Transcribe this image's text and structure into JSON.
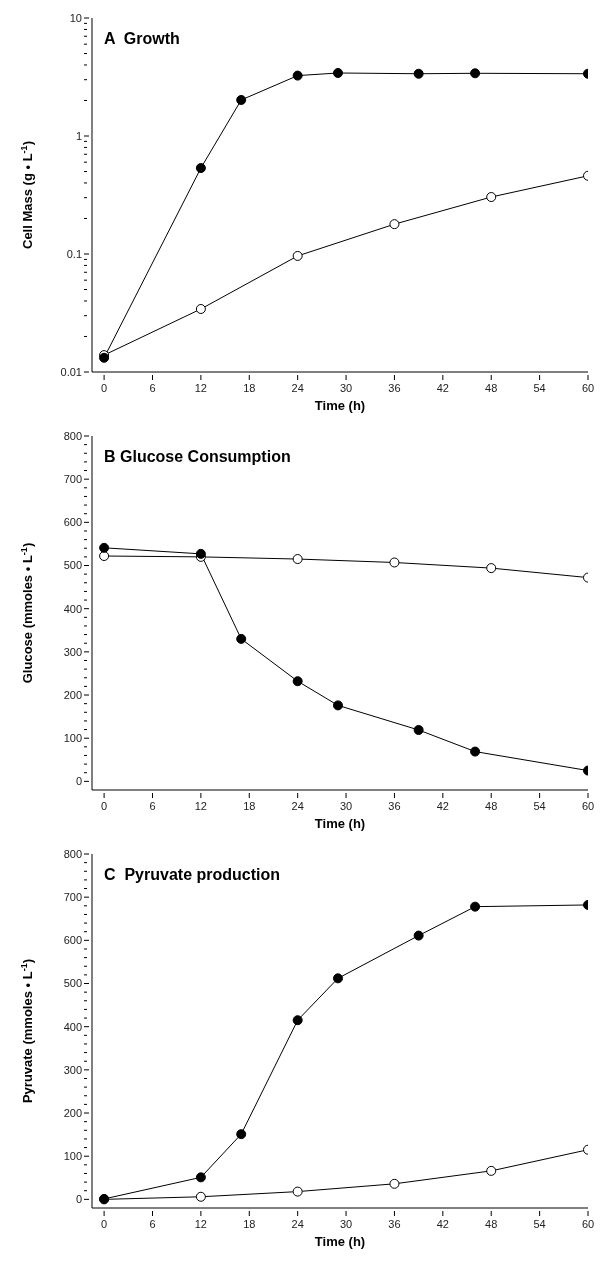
{
  "chart_data": [
    {
      "type": "line",
      "title": "A  Growth",
      "xlabel": "Time (h)",
      "ylabel": "Cell Mass (g • L$^{-1}$)",
      "log": "y",
      "marker": "circle",
      "line_style": "solid",
      "grid": false,
      "legend": false,
      "xlim": [
        -1.5,
        60
      ],
      "xticks": [
        0,
        6,
        12,
        18,
        24,
        30,
        36,
        42,
        48,
        54,
        60
      ],
      "ylim": [
        0.01,
        10
      ],
      "yticks": [
        0.01,
        {
          "value": 0.02,
          "label": null
        },
        {
          "value": 0.03,
          "label": null
        },
        {
          "value": 0.04,
          "label": null
        },
        {
          "value": 0.05,
          "label": null
        },
        {
          "value": 0.06,
          "label": null
        },
        {
          "value": 0.07,
          "label": null
        },
        {
          "value": 0.08,
          "label": null
        },
        {
          "value": 0.09,
          "label": null
        },
        0.1,
        {
          "value": 0.2,
          "label": null
        },
        {
          "value": 0.3,
          "label": null
        },
        {
          "value": 0.4,
          "label": null
        },
        {
          "value": 0.5,
          "label": null
        },
        {
          "value": 0.6,
          "label": null
        },
        {
          "value": 0.7,
          "label": null
        },
        {
          "value": 0.8,
          "label": null
        },
        {
          "value": 0.9,
          "label": null
        },
        1,
        {
          "value": 2,
          "label": null
        },
        {
          "value": 3,
          "label": null
        },
        {
          "value": 4,
          "label": null
        },
        {
          "value": 5,
          "label": null
        },
        {
          "value": 6,
          "label": null
        },
        {
          "value": 7,
          "label": null
        },
        {
          "value": 8,
          "label": null
        },
        {
          "value": 9,
          "label": null
        },
        10
      ],
      "series": [
        {
          "color": "#000000",
          "x": [
            0,
            12,
            17,
            24,
            29,
            39,
            46,
            60
          ],
          "values": [
            0.0132,
            0.535,
            2.02,
            3.25,
            3.42,
            3.37,
            3.4,
            3.37
          ]
        },
        {
          "color": "#000000",
          "x": [
            0,
            12,
            24,
            36,
            48,
            60
          ],
          "values": [
            0.0139,
            0.0342,
            0.0963,
            0.179,
            0.304,
            0.46
          ]
        }
      ]
    },
    {
      "type": "line",
      "title": "B Glucose Consumption",
      "xlabel": "Time (h)",
      "ylabel": "Glucose (mmoles • L$^{-1}$)",
      "marker": "circle",
      "line_style": "solid",
      "grid": false,
      "legend": false,
      "xlim": [
        -1.5,
        60
      ],
      "xticks": [
        0,
        6,
        12,
        18,
        24,
        30,
        36,
        42,
        48,
        54,
        60
      ],
      "ylim": [
        -20,
        800
      ],
      "yticks": [
        0,
        {
          "value": 20,
          "label": null
        },
        {
          "value": 40,
          "label": null
        },
        {
          "value": 60,
          "label": null
        },
        {
          "value": 80,
          "label": null
        },
        100,
        {
          "value": 120,
          "label": null
        },
        {
          "value": 140,
          "label": null
        },
        {
          "value": 160,
          "label": null
        },
        {
          "value": 180,
          "label": null
        },
        200,
        {
          "value": 220,
          "label": null
        },
        {
          "value": 240,
          "label": null
        },
        {
          "value": 260,
          "label": null
        },
        {
          "value": 280,
          "label": null
        },
        300,
        {
          "value": 320,
          "label": null
        },
        {
          "value": 340,
          "label": null
        },
        {
          "value": 360,
          "label": null
        },
        {
          "value": 380,
          "label": null
        },
        400,
        {
          "value": 420,
          "label": null
        },
        {
          "value": 440,
          "label": null
        },
        {
          "value": 460,
          "label": null
        },
        {
          "value": 480,
          "label": null
        },
        500,
        {
          "value": 520,
          "label": null
        },
        {
          "value": 540,
          "label": null
        },
        {
          "value": 560,
          "label": null
        },
        {
          "value": 580,
          "label": null
        },
        600,
        {
          "value": 620,
          "label": null
        },
        {
          "value": 640,
          "label": null
        },
        {
          "value": 660,
          "label": null
        },
        {
          "value": 680,
          "label": null
        },
        700,
        {
          "value": 720,
          "label": null
        },
        {
          "value": 740,
          "label": null
        },
        {
          "value": 760,
          "label": null
        },
        {
          "value": 780,
          "label": null
        },
        800
      ],
      "series": [
        {
          "color": "#000000",
          "x": [
            0,
            12,
            17,
            24,
            29,
            39,
            46,
            60
          ],
          "values": [
            541,
            527,
            330,
            232,
            176,
            119,
            69,
            25
          ]
        },
        {
          "color": "#000000",
          "x": [
            0,
            12,
            24,
            36,
            48,
            60
          ],
          "values": [
            522,
            520,
            515,
            507,
            494,
            472
          ]
        }
      ]
    },
    {
      "type": "line",
      "title": "C  Pyruvate production",
      "xlabel": "Time (h)",
      "ylabel": "Pyruvate (mmoles • L$^{-1}$)",
      "marker": "circle",
      "line_style": "solid",
      "grid": false,
      "legend": false,
      "xlim": [
        -1.5,
        60
      ],
      "xticks": [
        0,
        6,
        12,
        18,
        24,
        30,
        36,
        42,
        48,
        54,
        60
      ],
      "ylim": [
        -20,
        800
      ],
      "yticks": [
        0,
        {
          "value": 20,
          "label": null
        },
        {
          "value": 40,
          "label": null
        },
        {
          "value": 60,
          "label": null
        },
        {
          "value": 80,
          "label": null
        },
        100,
        {
          "value": 120,
          "label": null
        },
        {
          "value": 140,
          "label": null
        },
        {
          "value": 160,
          "label": null
        },
        {
          "value": 180,
          "label": null
        },
        200,
        {
          "value": 220,
          "label": null
        },
        {
          "value": 240,
          "label": null
        },
        {
          "value": 260,
          "label": null
        },
        {
          "value": 280,
          "label": null
        },
        300,
        {
          "value": 320,
          "label": null
        },
        {
          "value": 340,
          "label": null
        },
        {
          "value": 360,
          "label": null
        },
        {
          "value": 380,
          "label": null
        },
        400,
        {
          "value": 420,
          "label": null
        },
        {
          "value": 440,
          "label": null
        },
        {
          "value": 460,
          "label": null
        },
        {
          "value": 480,
          "label": null
        },
        500,
        {
          "value": 520,
          "label": null
        },
        {
          "value": 540,
          "label": null
        },
        {
          "value": 560,
          "label": null
        },
        {
          "value": 580,
          "label": null
        },
        600,
        {
          "value": 620,
          "label": null
        },
        {
          "value": 640,
          "label": null
        },
        {
          "value": 660,
          "label": null
        },
        {
          "value": 680,
          "label": null
        },
        700,
        {
          "value": 720,
          "label": null
        },
        {
          "value": 740,
          "label": null
        },
        {
          "value": 760,
          "label": null
        },
        {
          "value": 780,
          "label": null
        },
        800
      ],
      "series": [
        {
          "color": "#000000",
          "x": [
            0,
            12,
            17,
            24,
            29,
            39,
            46,
            60
          ],
          "values": [
            1,
            51,
            151,
            415,
            512,
            611,
            678,
            682
          ]
        },
        {
          "color": "#000000",
          "x": [
            0,
            12,
            24,
            36,
            48,
            60
          ],
          "values": [
            0,
            6,
            18,
            36,
            66,
            115
          ]
        }
      ]
    }
  ]
}
